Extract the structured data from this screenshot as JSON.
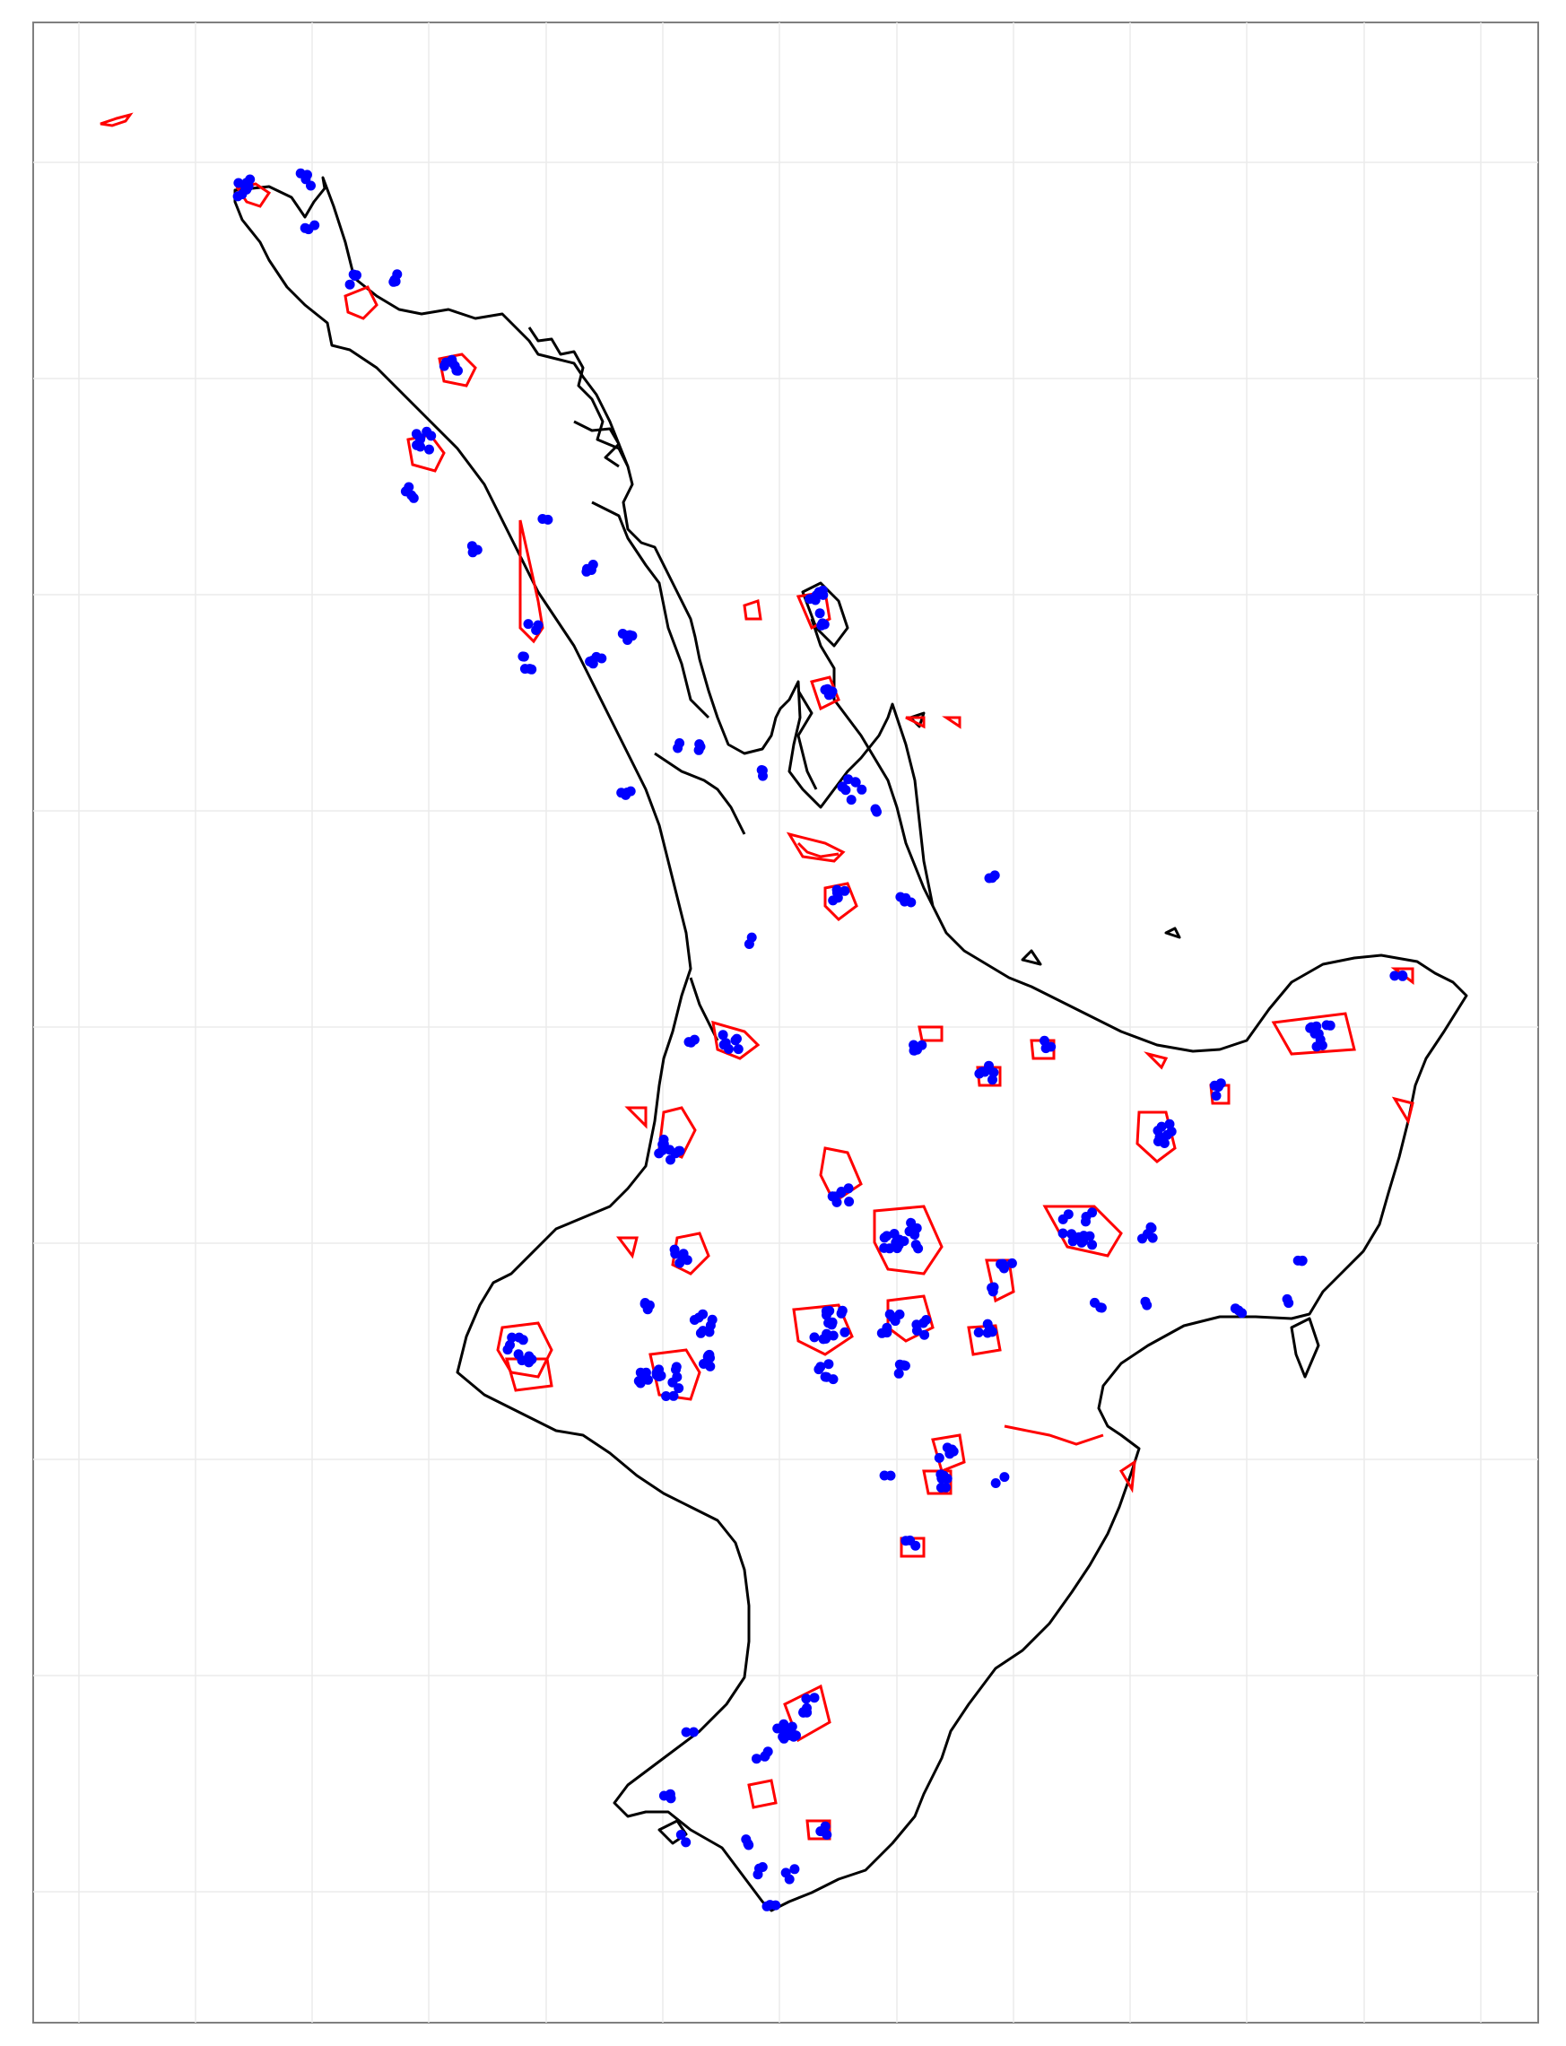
{
  "map": {
    "type": "point-and-polygon map",
    "region": "North Island",
    "grid": true,
    "layers": [
      {
        "name": "coastline",
        "color": "#000000"
      },
      {
        "name": "polygons",
        "color": "#ff0000"
      },
      {
        "name": "points",
        "color": "#0000ff"
      }
    ]
  },
  "colors": {
    "background": "#ffffff",
    "grid": "#ebebeb",
    "frame": "#7f7f7f",
    "coastline": "#000000",
    "polygon": "#ff0000",
    "point": "#0000ff"
  }
}
